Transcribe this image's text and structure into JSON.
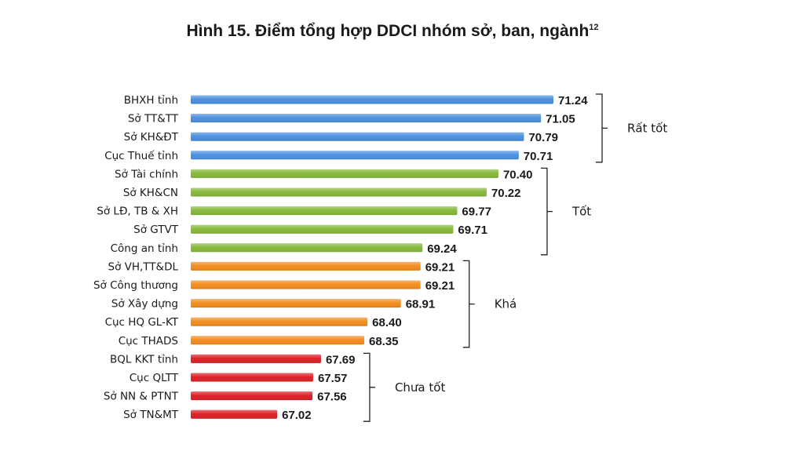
{
  "title": "Hình 15. Điểm tổng hợp DDCI nhóm sở, ban, ngành",
  "title_sup": "12",
  "chart_data": {
    "type": "bar",
    "orientation": "horizontal",
    "categories": [
      "BHXH tỉnh",
      "Sở TT&TT",
      "Sở KH&ĐT",
      "Cục Thuế tỉnh",
      "Sở Tài chính",
      "Sở KH&CN",
      "Sở LĐ, TB & XH",
      "Sở GTVT",
      "Công an tỉnh",
      "Sở VH,TT&DL",
      "Sở Công thương",
      "Sở Xây dựng",
      "Cục HQ GL-KT",
      "Cục THADS",
      "BQL KKT tỉnh",
      "Cục QLTT",
      "Sở NN & PTNT",
      "Sở TN&MT"
    ],
    "values": [
      71.24,
      71.05,
      70.79,
      70.71,
      70.4,
      70.22,
      69.77,
      69.71,
      69.24,
      69.21,
      69.21,
      68.91,
      68.4,
      68.35,
      67.69,
      67.57,
      67.56,
      67.02
    ],
    "value_labels": [
      "71.24",
      "71.05",
      "70.79",
      "70.71",
      "70.40",
      "70.22",
      "69.77",
      "69.71",
      "69.24",
      "69.21",
      "69.21",
      "68.91",
      "68.40",
      "68.35",
      "67.69",
      "67.57",
      "67.56",
      "67.02"
    ],
    "groups": [
      {
        "name": "Rất tốt",
        "start": 0,
        "end": 3,
        "color": "#4a8fe0"
      },
      {
        "name": "Tốt",
        "start": 4,
        "end": 8,
        "color": "#86b83a"
      },
      {
        "name": "Khá",
        "start": 9,
        "end": 13,
        "color": "#f28c1c"
      },
      {
        "name": "Chưa tốt",
        "start": 14,
        "end": 17,
        "color": "#dd1f26"
      }
    ],
    "xlim": [
      65.7,
      71.24
    ],
    "grid": false,
    "xaxis_visible": false
  }
}
